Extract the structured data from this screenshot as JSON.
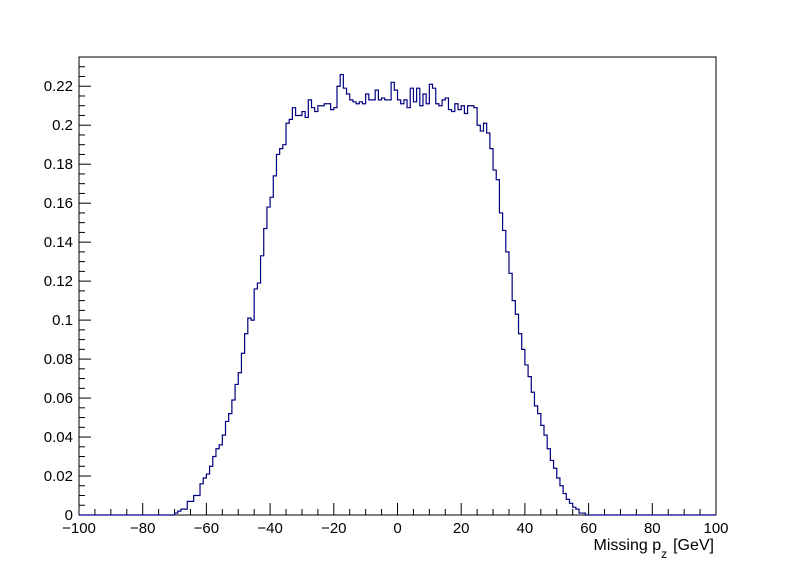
{
  "chart_data": {
    "type": "histogram",
    "title": "",
    "xlabel_main": "Missing p",
    "xlabel_sub": "z",
    "xlabel_unit": "[GeV]",
    "ylabel": "",
    "xlim": [
      -100,
      100
    ],
    "ylim": [
      0,
      0.235
    ],
    "grid": false,
    "legend": "none",
    "line_color": "#000080",
    "x_ticks": [
      -100,
      -80,
      -60,
      -40,
      -20,
      0,
      20,
      40,
      60,
      80,
      100
    ],
    "x_tick_labels": [
      "−100",
      "−80",
      "−60",
      "−40",
      "−20",
      "0",
      "20",
      "40",
      "60",
      "80",
      "100"
    ],
    "y_ticks": [
      0,
      0.02,
      0.04,
      0.06,
      0.08,
      0.1,
      0.12,
      0.14,
      0.16,
      0.18,
      0.2,
      0.22
    ],
    "y_tick_labels": [
      "0",
      "0.02",
      "0.04",
      "0.06",
      "0.08",
      "0.1",
      "0.12",
      "0.14",
      "0.16",
      "0.18",
      "0.2",
      "0.22"
    ],
    "bin_start": -100,
    "bin_width": 1,
    "bin_values": [
      0,
      0,
      0,
      0,
      0,
      0,
      0,
      0,
      0,
      0,
      0,
      0,
      0,
      0,
      0,
      0,
      0,
      0,
      0,
      0,
      0,
      0,
      0,
      0,
      0,
      0,
      0,
      0,
      0,
      0,
      0.001,
      0.002,
      0.003,
      0.003,
      0.007,
      0.007,
      0.01,
      0.01,
      0.016,
      0.019,
      0.021,
      0.025,
      0.03,
      0.034,
      0.036,
      0.041,
      0.048,
      0.052,
      0.059,
      0.067,
      0.073,
      0.083,
      0.093,
      0.101,
      0.1,
      0.116,
      0.119,
      0.133,
      0.147,
      0.158,
      0.163,
      0.174,
      0.185,
      0.188,
      0.19,
      0.201,
      0.203,
      0.209,
      0.205,
      0.205,
      0.207,
      0.204,
      0.213,
      0.209,
      0.207,
      0.21,
      0.21,
      0.211,
      0.211,
      0.208,
      0.209,
      0.22,
      0.226,
      0.219,
      0.216,
      0.213,
      0.212,
      0.211,
      0.212,
      0.211,
      0.216,
      0.213,
      0.213,
      0.218,
      0.213,
      0.214,
      0.213,
      0.213,
      0.222,
      0.218,
      0.213,
      0.211,
      0.213,
      0.209,
      0.219,
      0.212,
      0.219,
      0.21,
      0.216,
      0.211,
      0.221,
      0.219,
      0.211,
      0.21,
      0.213,
      0.214,
      0.208,
      0.207,
      0.211,
      0.208,
      0.21,
      0.206,
      0.21,
      0.21,
      0.209,
      0.2,
      0.197,
      0.201,
      0.196,
      0.188,
      0.177,
      0.172,
      0.155,
      0.146,
      0.135,
      0.124,
      0.11,
      0.103,
      0.093,
      0.085,
      0.077,
      0.071,
      0.063,
      0.056,
      0.052,
      0.046,
      0.041,
      0.034,
      0.028,
      0.024,
      0.019,
      0.015,
      0.011,
      0.008,
      0.006,
      0.004,
      0.003,
      0.001,
      0.001,
      0.0,
      0,
      0,
      0,
      0,
      0,
      0,
      0,
      0,
      0,
      0,
      0,
      0,
      0,
      0,
      0,
      0,
      0,
      0,
      0,
      0,
      0,
      0,
      0,
      0,
      0,
      0,
      0,
      0,
      0,
      0,
      0,
      0,
      0,
      0,
      0,
      0,
      0,
      0,
      0,
      0
    ]
  }
}
